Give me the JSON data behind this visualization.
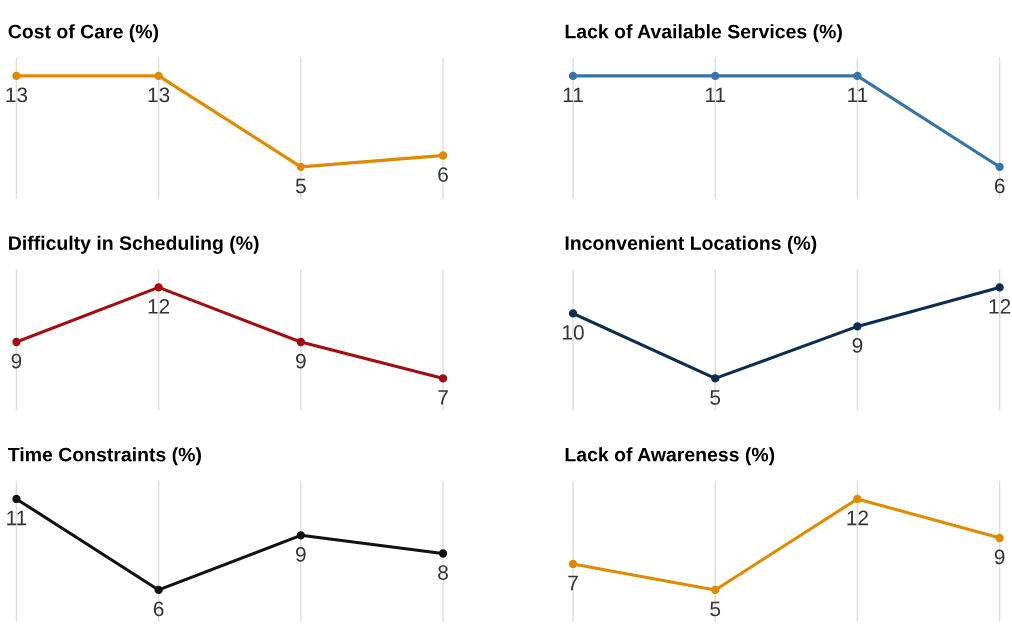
{
  "chart_data": [
    {
      "type": "line",
      "title": "Cost of Care (%)",
      "categories": [
        null,
        null,
        null,
        null
      ],
      "values": [
        13,
        13,
        5,
        6
      ],
      "color": "#e08a00",
      "marker": "circle",
      "data_labels": true,
      "grid": "x"
    },
    {
      "type": "line",
      "title": "Lack of Available Services (%)",
      "categories": [
        null,
        null,
        null,
        null
      ],
      "values": [
        11,
        11,
        11,
        6
      ],
      "color": "#3574aa",
      "marker": "circle",
      "data_labels": true,
      "grid": "x"
    },
    {
      "type": "line",
      "title": "Difficulty in Scheduling (%)",
      "categories": [
        null,
        null,
        null,
        null
      ],
      "values": [
        9,
        12,
        9,
        7
      ],
      "color": "#a00d12",
      "marker": "circle",
      "data_labels": true,
      "grid": "x"
    },
    {
      "type": "line",
      "title": "Inconvenient Locations (%)",
      "categories": [
        null,
        null,
        null,
        null
      ],
      "values": [
        10,
        5,
        9,
        12
      ],
      "color": "#0c2d52",
      "marker": "circle",
      "data_labels": true,
      "grid": "x"
    },
    {
      "type": "line",
      "title": "Time Constraints (%)",
      "categories": [
        null,
        null,
        null,
        null
      ],
      "values": [
        11,
        6,
        9,
        8
      ],
      "color": "#111111",
      "marker": "circle",
      "data_labels": true,
      "grid": "x"
    },
    {
      "type": "line",
      "title": "Lack of Awareness (%)",
      "categories": [
        null,
        null,
        null,
        null
      ],
      "values": [
        7,
        5,
        12,
        9
      ],
      "color": "#e08a00",
      "marker": "circle",
      "data_labels": true,
      "grid": "x"
    }
  ]
}
